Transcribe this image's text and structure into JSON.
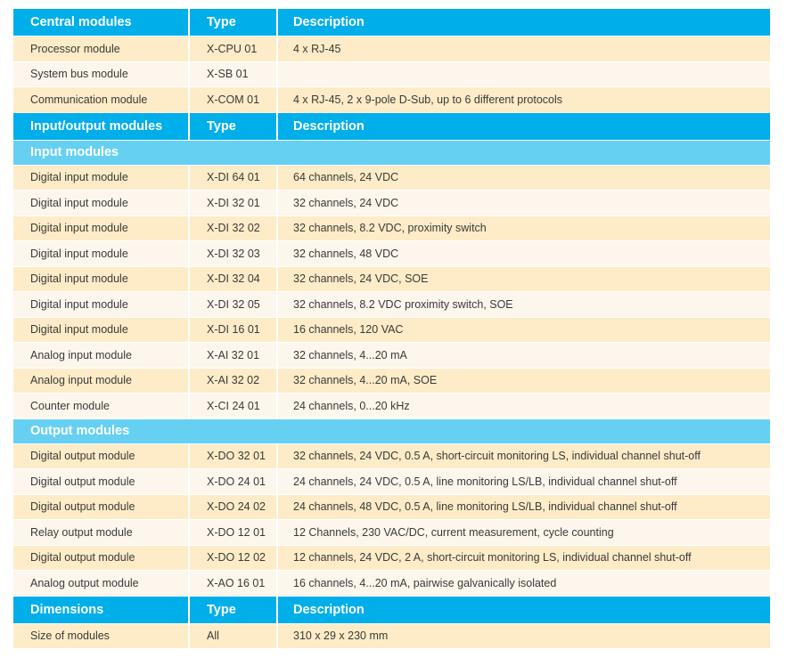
{
  "sections": {
    "central": {
      "header": [
        "Central modules",
        "Type",
        "Description"
      ],
      "rows": [
        [
          "Processor module",
          "X-CPU 01",
          "4 x RJ-45"
        ],
        [
          "System bus module",
          "X-SB 01",
          ""
        ],
        [
          "Communication module",
          "X-COM 01",
          "4 x RJ-45, 2 x 9-pole D-Sub, up to 6 different protocols"
        ]
      ]
    },
    "io": {
      "header": [
        "Input/output modules",
        "Type",
        "Description"
      ],
      "input_title": "Input modules",
      "input_rows": [
        [
          "Digital input module",
          "X-DI 64 01",
          "64 channels, 24 VDC"
        ],
        [
          "Digital input module",
          "X-DI 32 01",
          "32 channels, 24 VDC"
        ],
        [
          "Digital input module",
          "X-DI 32 02",
          "32 channels, 8.2 VDC, proximity switch"
        ],
        [
          "Digital input module",
          "X-DI 32 03",
          "32 channels, 48 VDC"
        ],
        [
          "Digital input module",
          "X-DI 32 04",
          "32 channels, 24 VDC, SOE"
        ],
        [
          "Digital input module",
          "X-DI 32 05",
          "32 channels, 8.2 VDC proximity switch, SOE"
        ],
        [
          "Digital input module",
          "X-DI 16 01",
          "16 channels, 120 VAC"
        ],
        [
          "Analog input module",
          "X-AI 32 01",
          "32 channels, 4...20 mA"
        ],
        [
          "Analog input module",
          "X-AI 32 02",
          "32 channels, 4...20 mA, SOE"
        ],
        [
          "Counter module",
          "X-CI 24 01",
          "24 channels, 0...20 kHz"
        ]
      ],
      "output_title": "Output modules",
      "output_rows": [
        [
          "Digital output module",
          "X-DO 32 01",
          "32 channels, 24 VDC, 0.5 A, short-circuit monitoring LS, individual channel shut-off"
        ],
        [
          "Digital output module",
          "X-DO 24 01",
          "24 channels, 24 VDC, 0.5 A, line monitoring LS/LB, individual channel shut-off"
        ],
        [
          "Digital output module",
          "X-DO 24 02",
          "24 channels, 48 VDC, 0.5 A, line monitoring LS/LB, individual channel shut-off"
        ],
        [
          "Relay output module",
          "X-DO 12 01",
          "12 Channels, 230 VAC/DC, current measurement, cycle counting"
        ],
        [
          "Digital output module",
          "X-DO 12 02",
          "12 channels, 24 VDC, 2 A, short-circuit monitoring LS, individual channel shut-off"
        ],
        [
          "Analog output module",
          "X-AO 16 01",
          "16 channels, 4...20 mA, pairwise galvanically isolated"
        ]
      ]
    },
    "dimensions": {
      "header": [
        "Dimensions",
        "Type",
        "Description"
      ],
      "rows": [
        [
          "Size of modules",
          "All",
          "310 x 29 x 230 mm"
        ]
      ]
    }
  },
  "colors": {
    "header_bg": "#00aee9",
    "subheader_bg": "#66d0f3",
    "row_odd_bg": "#fdecc7",
    "row_even_bg": "#fdf6ec",
    "text": "#3a3a3a"
  }
}
